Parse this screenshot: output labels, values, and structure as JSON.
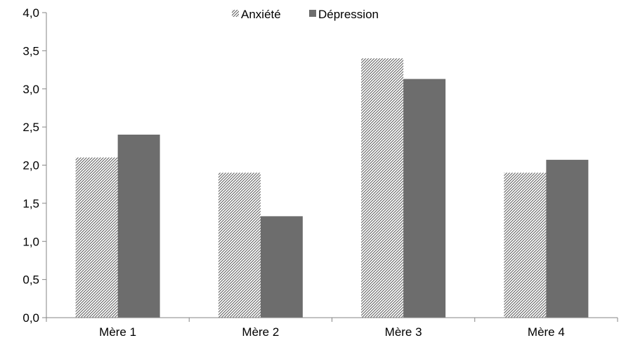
{
  "chart_data": {
    "type": "bar",
    "categories": [
      "Mère 1",
      "Mère 2",
      "Mère 3",
      "Mère 4"
    ],
    "series": [
      {
        "name": "Anxiété",
        "values": [
          2.1,
          1.9,
          3.4,
          1.9
        ],
        "color": "#ffffff",
        "pattern": "diagonal-hatch"
      },
      {
        "name": "Dépression",
        "values": [
          2.4,
          1.33,
          3.13,
          2.07
        ],
        "color": "#6d6d6d"
      }
    ],
    "ylim": [
      0,
      4
    ],
    "yticks": [
      "0,0",
      "0,5",
      "1,0",
      "1,5",
      "2,0",
      "2,5",
      "3,0",
      "3,5",
      "4,0"
    ],
    "ytick_values": [
      0,
      0.5,
      1.0,
      1.5,
      2.0,
      2.5,
      3.0,
      3.5,
      4.0
    ],
    "grid": false,
    "legend_position": "top-center"
  }
}
